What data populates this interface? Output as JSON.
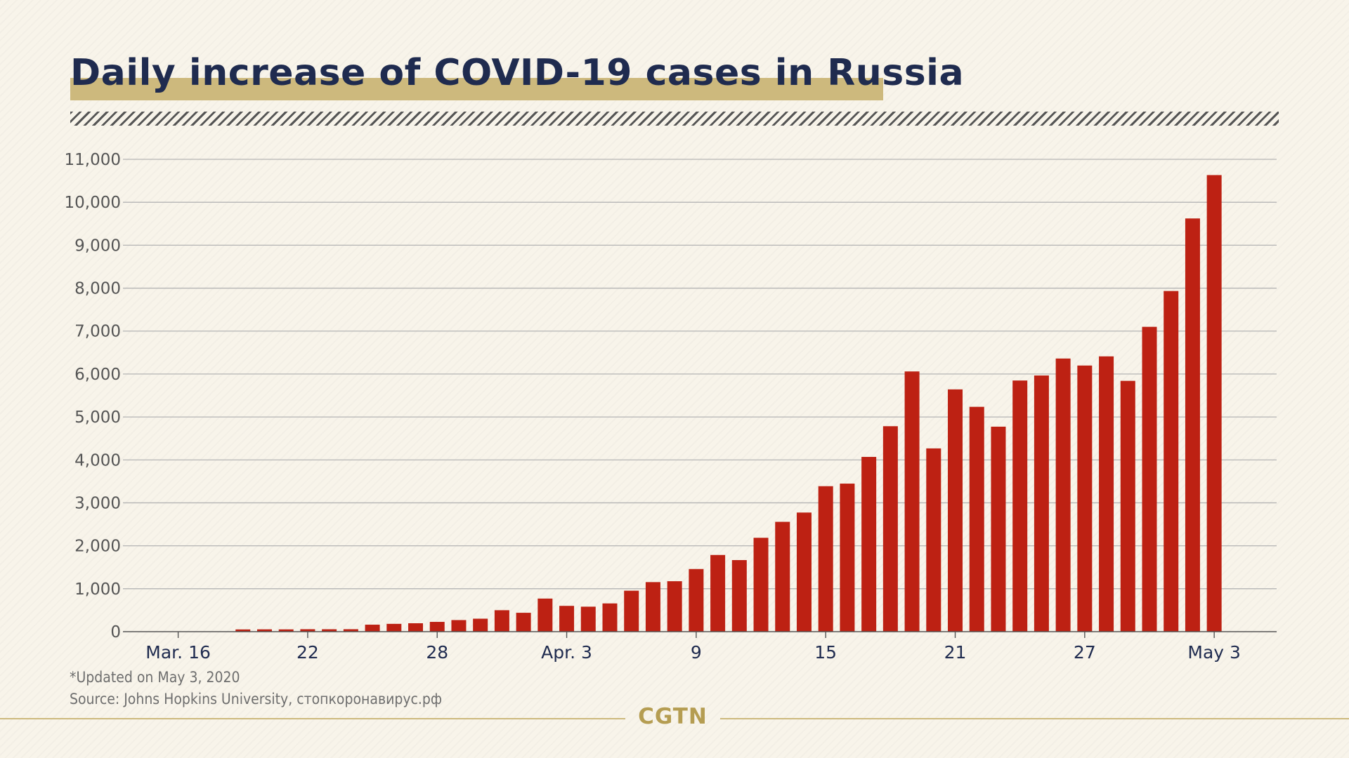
{
  "title": "Daily increase of COVID-19 cases in Russia",
  "footnote_updated": "*Updated on May 3, 2020",
  "footnote_source": "Source: Johns Hopkins University, стопкоронавирус.рф",
  "logo_text": "CGTN",
  "colors": {
    "bar": "#bd2113",
    "title": "#1f2b4f",
    "accent": "#cdb97d",
    "grid": "#b4b4b4",
    "axis_text": "#555555",
    "date_text": "#1f2b4f"
  },
  "chart_data": {
    "type": "bar",
    "title": "Daily increase of COVID-19 cases in Russia",
    "xlabel": "",
    "ylabel": "",
    "ylim": [
      0,
      11000
    ],
    "grid": true,
    "yticks": [
      0,
      1000,
      2000,
      3000,
      4000,
      5000,
      6000,
      7000,
      8000,
      9000,
      10000,
      11000
    ],
    "ytick_labels": [
      "0",
      "1,000",
      "2,000",
      "3,000",
      "4,000",
      "5,000",
      "6,000",
      "7,000",
      "8,000",
      "9,000",
      "10,000",
      "11,000"
    ],
    "xtick_labels": [
      {
        "category": "Mar. 16",
        "label": "Mar. 16"
      },
      {
        "category": "Mar. 22",
        "label": "22"
      },
      {
        "category": "Mar. 28",
        "label": "28"
      },
      {
        "category": "Apr. 3",
        "label": "Apr. 3"
      },
      {
        "category": "Apr. 9",
        "label": "9"
      },
      {
        "category": "Apr. 15",
        "label": "15"
      },
      {
        "category": "Apr. 21",
        "label": "21"
      },
      {
        "category": "Apr. 27",
        "label": "27"
      },
      {
        "category": "May 3",
        "label": "May 3"
      }
    ],
    "categories": [
      "Mar. 16",
      "Mar. 17",
      "Mar. 18",
      "Mar. 19",
      "Mar. 20",
      "Mar. 21",
      "Mar. 22",
      "Mar. 23",
      "Mar. 24",
      "Mar. 25",
      "Mar. 26",
      "Mar. 27",
      "Mar. 28",
      "Mar. 29",
      "Mar. 30",
      "Mar. 31",
      "Apr. 1",
      "Apr. 2",
      "Apr. 3",
      "Apr. 4",
      "Apr. 5",
      "Apr. 6",
      "Apr. 7",
      "Apr. 8",
      "Apr. 9",
      "Apr. 10",
      "Apr. 11",
      "Apr. 12",
      "Apr. 13",
      "Apr. 14",
      "Apr. 15",
      "Apr. 16",
      "Apr. 17",
      "Apr. 18",
      "Apr. 19",
      "Apr. 20",
      "Apr. 21",
      "Apr. 22",
      "Apr. 23",
      "Apr. 24",
      "Apr. 25",
      "Apr. 26",
      "Apr. 27",
      "Apr. 28",
      "Apr. 29",
      "Apr. 30",
      "May 1",
      "May 2",
      "May 3"
    ],
    "values": [
      0,
      0,
      0,
      52,
      54,
      53,
      57,
      56,
      57,
      163,
      182,
      196,
      228,
      270,
      302,
      500,
      440,
      771,
      601,
      582,
      658,
      954,
      1154,
      1175,
      1459,
      1786,
      1667,
      2186,
      2558,
      2774,
      3388,
      3448,
      4070,
      4785,
      6060,
      4268,
      5642,
      5236,
      4774,
      5849,
      5966,
      6361,
      6198,
      6411,
      5841,
      7099,
      7933,
      9623,
      10633
    ]
  }
}
